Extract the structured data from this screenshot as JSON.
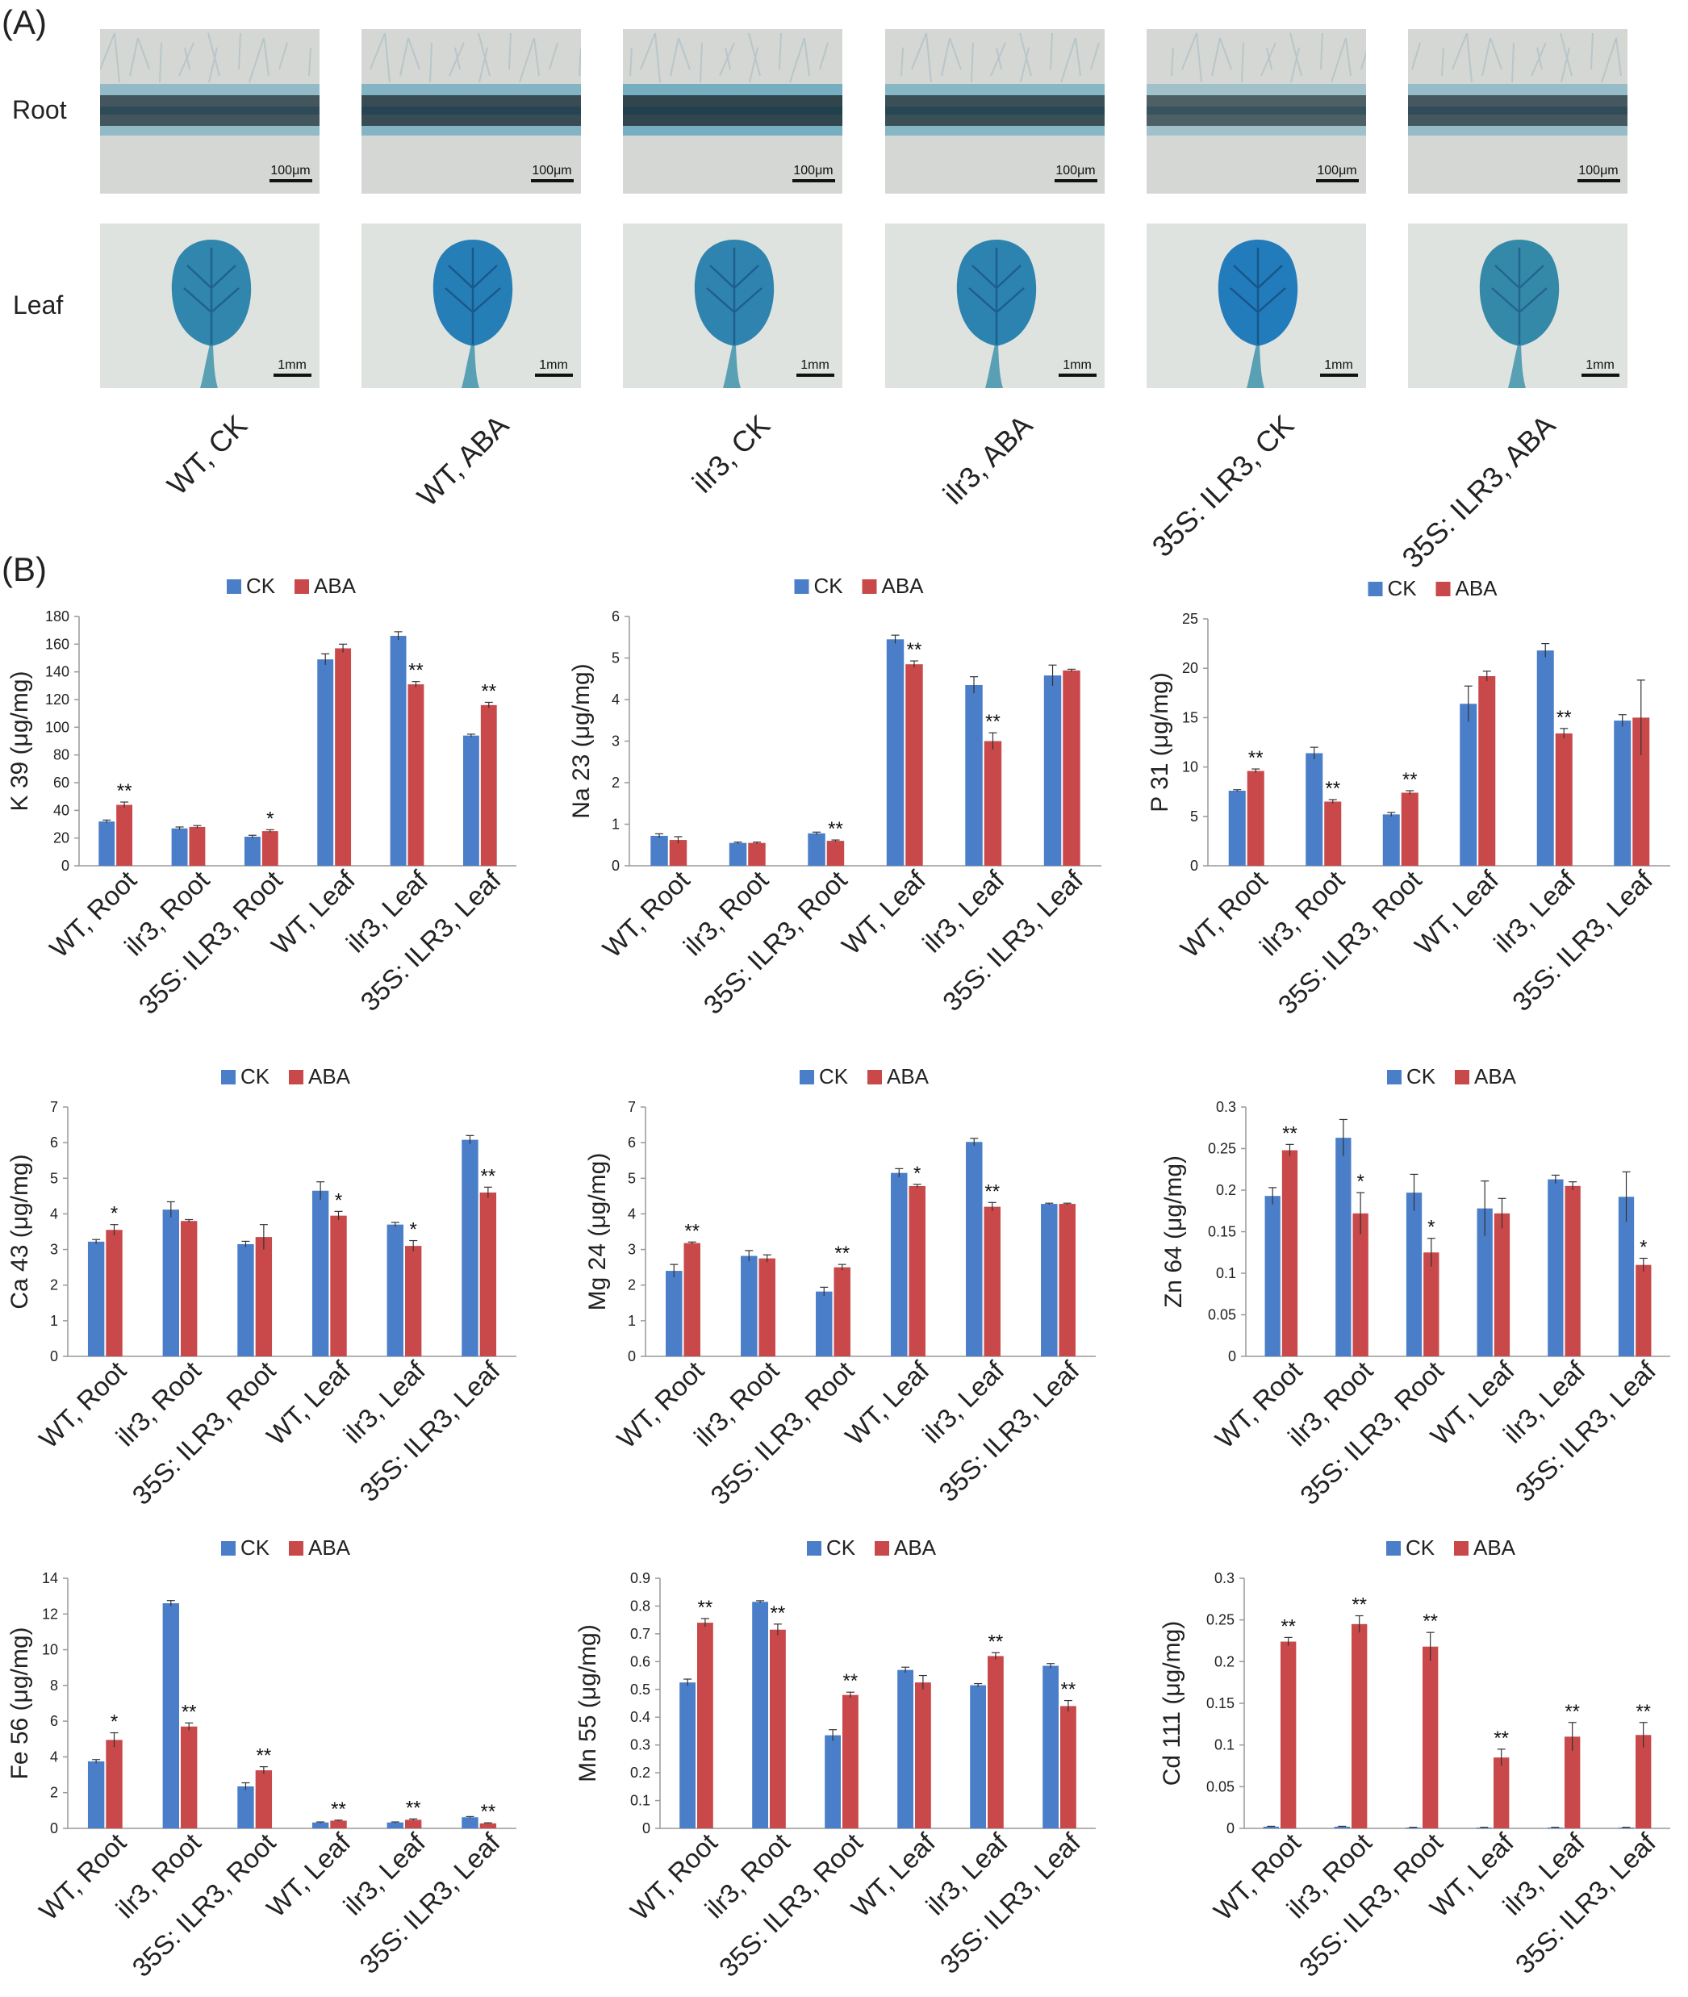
{
  "panel_a": {
    "label": "(A)",
    "rows": [
      "Root",
      "Leaf"
    ],
    "scale_bars": {
      "root": "100μm",
      "leaf": "1mm"
    },
    "samples": [
      "WT, CK",
      "WT, ABA",
      "ilr3, CK",
      "ilr3, ABA",
      "35S: ILR3, CK",
      "35S: ILR3, ABA"
    ],
    "colors": {
      "stain_blue": "#2f8fb3",
      "background": "#d9ddd9"
    }
  },
  "panel_b": {
    "label": "(B)"
  },
  "legend": {
    "ck": "CK",
    "aba": "ABA"
  },
  "colors": {
    "ck": "#4a7ec8",
    "aba": "#c9484a"
  },
  "chart_data": [
    {
      "type": "bar",
      "ylabel": "K 39 (μg/mg)",
      "ylim": [
        0,
        180
      ],
      "yticks": [
        0,
        20,
        40,
        60,
        80,
        100,
        120,
        140,
        160,
        180
      ],
      "categories": [
        "WT, Root",
        "ilr3, Root",
        "35S: ILR3, Root",
        "WT, Leaf",
        "ilr3, Leaf",
        "35S: ILR3, Leaf"
      ],
      "series": [
        {
          "name": "CK",
          "values": [
            32,
            27,
            21,
            149,
            166,
            94
          ],
          "errors": [
            1,
            1,
            1,
            4,
            3,
            1
          ]
        },
        {
          "name": "ABA",
          "values": [
            44,
            28,
            25,
            157,
            131,
            116
          ],
          "errors": [
            2,
            1,
            1,
            3,
            2,
            2
          ]
        }
      ],
      "sig": [
        "**",
        "",
        "*",
        "",
        "**",
        "**"
      ]
    },
    {
      "type": "bar",
      "ylabel": "Na 23 (μg/mg)",
      "ylim": [
        0,
        6
      ],
      "yticks": [
        0,
        1,
        2,
        3,
        4,
        5,
        6
      ],
      "categories": [
        "WT, Root",
        "ilr3, Root",
        "35S: ILR3, Root",
        "WT, Leaf",
        "ilr3, Leaf",
        "35S: ILR3, Leaf"
      ],
      "series": [
        {
          "name": "CK",
          "values": [
            0.72,
            0.55,
            0.78,
            5.45,
            4.35,
            4.58
          ],
          "errors": [
            0.05,
            0.02,
            0.03,
            0.1,
            0.2,
            0.25
          ]
        },
        {
          "name": "ABA",
          "values": [
            0.62,
            0.55,
            0.6,
            4.85,
            3.0,
            4.7
          ],
          "errors": [
            0.08,
            0.02,
            0.02,
            0.08,
            0.2,
            0.03
          ]
        }
      ],
      "sig": [
        "",
        "",
        "**",
        "**",
        "**",
        ""
      ]
    },
    {
      "type": "bar",
      "ylabel": "P 31 (μg/mg)",
      "ylim": [
        0,
        25
      ],
      "yticks": [
        0,
        5,
        10,
        15,
        20,
        25
      ],
      "categories": [
        "WT, Root",
        "ilr3, Root",
        "35S: ILR3, Root",
        "WT, Leaf",
        "ilr3, Leaf",
        "35S: ILR3, Leaf"
      ],
      "series": [
        {
          "name": "CK",
          "values": [
            7.6,
            11.4,
            5.2,
            16.4,
            21.8,
            14.7
          ],
          "errors": [
            0.1,
            0.6,
            0.2,
            1.8,
            0.7,
            0.6
          ]
        },
        {
          "name": "ABA",
          "values": [
            9.6,
            6.5,
            7.4,
            19.2,
            13.4,
            15.0
          ],
          "errors": [
            0.2,
            0.2,
            0.2,
            0.5,
            0.5,
            3.8
          ]
        }
      ],
      "sig": [
        "**",
        "**",
        "**",
        "",
        "**",
        ""
      ]
    },
    {
      "type": "bar",
      "ylabel": "Ca 43 (μg/mg)",
      "ylim": [
        0,
        7
      ],
      "yticks": [
        0,
        1,
        2,
        3,
        4,
        5,
        6,
        7
      ],
      "categories": [
        "WT, Root",
        "ilr3, Root",
        "35S: ILR3, Root",
        "WT, Leaf",
        "ilr3, Leaf",
        "35S: ILR3, Leaf"
      ],
      "series": [
        {
          "name": "CK",
          "values": [
            3.22,
            4.12,
            3.15,
            4.65,
            3.7,
            6.08
          ],
          "errors": [
            0.06,
            0.22,
            0.08,
            0.25,
            0.06,
            0.12
          ]
        },
        {
          "name": "ABA",
          "values": [
            3.55,
            3.8,
            3.35,
            3.95,
            3.1,
            4.6
          ],
          "errors": [
            0.15,
            0.04,
            0.35,
            0.12,
            0.15,
            0.15
          ]
        }
      ],
      "sig": [
        "*",
        "",
        "",
        "*",
        "*",
        "**"
      ]
    },
    {
      "type": "bar",
      "ylabel": "Mg 24 (μg/mg)",
      "ylim": [
        0,
        7
      ],
      "yticks": [
        0,
        1,
        2,
        3,
        4,
        5,
        6,
        7
      ],
      "categories": [
        "WT, Root",
        "ilr3, Root",
        "35S: ILR3, Root",
        "WT, Leaf",
        "ilr3, Leaf",
        "35S: ILR3, Leaf"
      ],
      "series": [
        {
          "name": "CK",
          "values": [
            2.4,
            2.82,
            1.82,
            5.15,
            6.02,
            4.28
          ],
          "errors": [
            0.18,
            0.15,
            0.12,
            0.12,
            0.1,
            0.02
          ]
        },
        {
          "name": "ABA",
          "values": [
            3.18,
            2.75,
            2.5,
            4.78,
            4.2,
            4.28
          ],
          "errors": [
            0.03,
            0.1,
            0.08,
            0.05,
            0.12,
            0.02
          ]
        }
      ],
      "sig": [
        "**",
        "",
        "**",
        "*",
        "**",
        ""
      ]
    },
    {
      "type": "bar",
      "ylabel": "Zn 64 (μg/mg)",
      "ylim": [
        0,
        0.3
      ],
      "yticks": [
        0,
        0.05,
        0.1,
        0.15,
        0.2,
        0.25,
        0.3
      ],
      "categories": [
        "WT, Root",
        "ilr3, Root",
        "35S: ILR3, Root",
        "WT, Leaf",
        "ilr3, Leaf",
        "35S: ILR3, Leaf"
      ],
      "series": [
        {
          "name": "CK",
          "values": [
            0.193,
            0.263,
            0.197,
            0.178,
            0.213,
            0.192
          ],
          "errors": [
            0.01,
            0.022,
            0.022,
            0.033,
            0.005,
            0.03
          ]
        },
        {
          "name": "ABA",
          "values": [
            0.248,
            0.172,
            0.125,
            0.172,
            0.205,
            0.11
          ],
          "errors": [
            0.007,
            0.025,
            0.017,
            0.018,
            0.005,
            0.008
          ]
        }
      ],
      "sig": [
        "**",
        "*",
        "*",
        "",
        "",
        "*"
      ]
    },
    {
      "type": "bar",
      "ylabel": "Fe 56 (μg/mg)",
      "ylim": [
        0,
        14
      ],
      "yticks": [
        0,
        2,
        4,
        6,
        8,
        10,
        12,
        14
      ],
      "categories": [
        "WT, Root",
        "ilr3, Root",
        "35S: ILR3, Root",
        "WT, Leaf",
        "ilr3, Leaf",
        "35S: ILR3, Leaf"
      ],
      "series": [
        {
          "name": "CK",
          "values": [
            3.75,
            12.6,
            2.35,
            0.33,
            0.33,
            0.62
          ],
          "errors": [
            0.1,
            0.15,
            0.2,
            0.03,
            0.03,
            0.04
          ]
        },
        {
          "name": "ABA",
          "values": [
            4.95,
            5.7,
            3.25,
            0.43,
            0.48,
            0.28
          ],
          "errors": [
            0.4,
            0.2,
            0.2,
            0.03,
            0.05,
            0.03
          ]
        }
      ],
      "sig": [
        "*",
        "**",
        "**",
        "**",
        "**",
        "**"
      ]
    },
    {
      "type": "bar",
      "ylabel": "Mn 55 (μg/mg)",
      "ylim": [
        0,
        0.9
      ],
      "yticks": [
        0,
        0.1,
        0.2,
        0.3,
        0.4,
        0.5,
        0.6,
        0.7,
        0.8,
        0.9
      ],
      "categories": [
        "WT, Root",
        "ilr3, Root",
        "35S: ILR3, Root",
        "WT, Leaf",
        "ilr3, Leaf",
        "35S: ILR3, Leaf"
      ],
      "series": [
        {
          "name": "CK",
          "values": [
            0.525,
            0.815,
            0.335,
            0.57,
            0.515,
            0.585
          ],
          "errors": [
            0.012,
            0.004,
            0.02,
            0.01,
            0.006,
            0.008
          ]
        },
        {
          "name": "ABA",
          "values": [
            0.74,
            0.715,
            0.48,
            0.525,
            0.62,
            0.44
          ],
          "errors": [
            0.015,
            0.02,
            0.01,
            0.025,
            0.012,
            0.02
          ]
        }
      ],
      "sig": [
        "**",
        "**",
        "**",
        "",
        "**",
        "**"
      ]
    },
    {
      "type": "bar",
      "ylabel": "Cd 111 (μg/mg)",
      "ylim": [
        0,
        0.3
      ],
      "yticks": [
        0,
        0.05,
        0.1,
        0.15,
        0.2,
        0.25,
        0.3
      ],
      "categories": [
        "WT, Root",
        "ilr3, Root",
        "35S: ILR3, Root",
        "WT, Leaf",
        "ilr3, Leaf",
        "35S: ILR3, Leaf"
      ],
      "series": [
        {
          "name": "CK",
          "values": [
            0.002,
            0.002,
            0.001,
            0.001,
            0.001,
            0.001
          ],
          "errors": [
            0.0005,
            0.0005,
            0.0003,
            0.0003,
            0.0003,
            0.0003
          ]
        },
        {
          "name": "ABA",
          "values": [
            0.224,
            0.245,
            0.218,
            0.085,
            0.11,
            0.112
          ],
          "errors": [
            0.005,
            0.01,
            0.017,
            0.01,
            0.017,
            0.015
          ]
        }
      ],
      "sig": [
        "**",
        "**",
        "**",
        "**",
        "**",
        "**"
      ]
    }
  ]
}
